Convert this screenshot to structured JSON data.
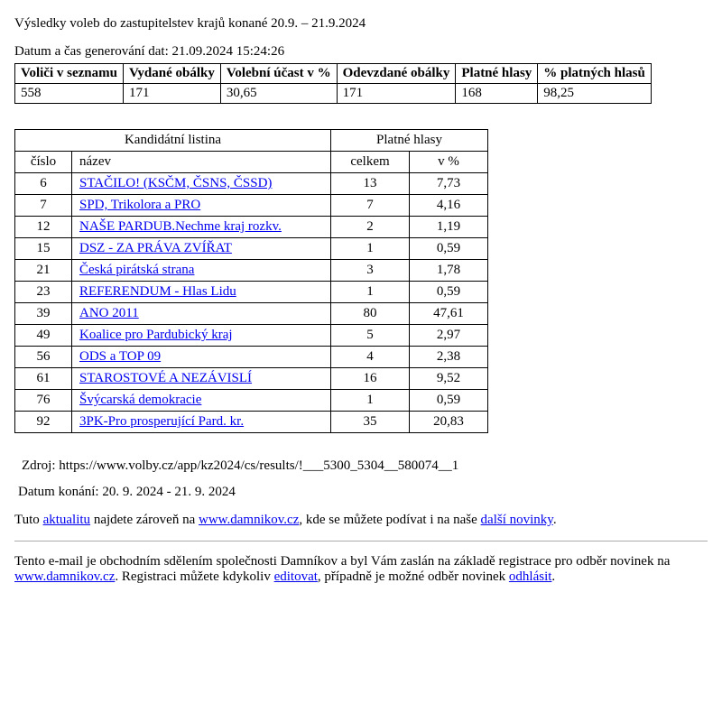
{
  "title": "Výsledky voleb do zastupitelstev krajů konané 20.9. – 21.9.2024",
  "generated_label": "Datum a čas generování dat: 21.09.2024 15:24:26",
  "summary": {
    "headers": {
      "voters": "Voliči v seznamu",
      "envelopes_issued": "Vydané obálky",
      "turnout_pct": "Volební účast v %",
      "envelopes_returned": "Odevzdané obálky",
      "valid_votes": "Platné hlasy",
      "valid_pct": "% platných hlasů"
    },
    "row": {
      "voters": "558",
      "envelopes_issued": "171",
      "turnout_pct": "30,65",
      "envelopes_returned": "171",
      "valid_votes": "168",
      "valid_pct": "98,25"
    }
  },
  "results": {
    "header_candidate_list": "Kandidátní listina",
    "header_valid_votes": "Platné hlasy",
    "sub_number": "číslo",
    "sub_name": "název",
    "sub_total": "celkem",
    "sub_pct": "v %",
    "rows": [
      {
        "num": "6",
        "name": "STAČILO! (KSČM, ČSNS, ČSSD)",
        "total": "13",
        "pct": "7,73"
      },
      {
        "num": "7",
        "name": "SPD, Trikolora a PRO",
        "total": "7",
        "pct": "4,16"
      },
      {
        "num": "12",
        "name": "NAŠE PARDUB.Nechme kraj rozkv.",
        "total": "2",
        "pct": "1,19"
      },
      {
        "num": "15",
        "name": "DSZ - ZA PRÁVA ZVÍŘAT",
        "total": "1",
        "pct": "0,59"
      },
      {
        "num": "21",
        "name": "Česká pirátská strana",
        "total": "3",
        "pct": "1,78"
      },
      {
        "num": "23",
        "name": "REFERENDUM - Hlas Lidu",
        "total": "1",
        "pct": "0,59"
      },
      {
        "num": "39",
        "name": "ANO 2011",
        "total": "80",
        "pct": "47,61"
      },
      {
        "num": "49",
        "name": "Koalice pro Pardubický kraj",
        "total": "5",
        "pct": "2,97"
      },
      {
        "num": "56",
        "name": "ODS a TOP 09",
        "total": "4",
        "pct": "2,38"
      },
      {
        "num": "61",
        "name": "STAROSTOVÉ A NEZÁVISLÍ",
        "total": "16",
        "pct": "9,52"
      },
      {
        "num": "76",
        "name": "Švýcarská demokracie",
        "total": "1",
        "pct": "0,59"
      },
      {
        "num": "92",
        "name": "3PK-Pro prosperující Pard. kr.",
        "total": "35",
        "pct": "20,83"
      }
    ]
  },
  "source": "Zdroj: https://www.volby.cz/app/kz2024/cs/results/!___5300_5304__580074__1",
  "date_held": "Datum konání: 20. 9. 2024 - 21. 9. 2024",
  "footer1": {
    "pre": "Tuto ",
    "link1": "aktualitu",
    "mid1": " najdete zároveň na ",
    "link2": "www.damnikov.cz",
    "mid2": ", kde se můžete podívat i na naše ",
    "link3": "další novinky",
    "post": "."
  },
  "footer2": {
    "pre": "Tento e-mail je obchodním sdělením společnosti Damníkov a byl Vám zaslán na základě registrace pro odběr novinek na ",
    "link1": "www.damnikov.cz",
    "mid1": ". Registraci můžete kdykoliv ",
    "link2": "editovat",
    "mid2": ", případně je možné odběr novinek ",
    "link3": "odhlásit",
    "post": "."
  }
}
